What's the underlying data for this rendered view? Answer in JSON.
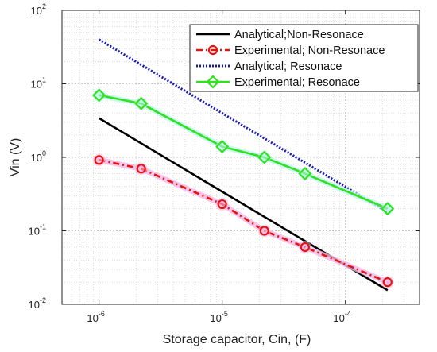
{
  "chart_data": {
    "type": "line",
    "xlabel": "Storage capacitor, Cin, (F)",
    "ylabel": "Vin (V)",
    "x_scale": "log",
    "y_scale": "log",
    "xlim": [
      5e-07,
      0.0004
    ],
    "ylim": [
      0.01,
      100
    ],
    "x_ticks": [
      {
        "value": 1e-06,
        "base": "10",
        "exp": "-6"
      },
      {
        "value": 1e-05,
        "base": "10",
        "exp": "-5"
      },
      {
        "value": 0.0001,
        "base": "10",
        "exp": "-4"
      }
    ],
    "y_ticks": [
      {
        "value": 0.01,
        "base": "10",
        "exp": "-2"
      },
      {
        "value": 0.1,
        "base": "10",
        "exp": "-1"
      },
      {
        "value": 1,
        "base": "10",
        "exp": "0"
      },
      {
        "value": 10,
        "base": "10",
        "exp": "1"
      },
      {
        "value": 100,
        "base": "10",
        "exp": "2"
      }
    ],
    "grid": true,
    "legend_position": "top-right",
    "series": [
      {
        "name": "Analytical;Non-Resonace",
        "color": "#000000",
        "style": "solid",
        "marker": "none",
        "x": [
          1e-06,
          0.00022
        ],
        "y": [
          3.4,
          0.0155
        ]
      },
      {
        "name": "Experimental; Non-Resonace",
        "color": "#e3150c",
        "style": "dashdot",
        "marker": "circle",
        "highlight": "#f2b8e8",
        "x": [
          1e-06,
          2.2e-06,
          1e-05,
          2.2e-05,
          4.7e-05,
          0.00022
        ],
        "y": [
          0.92,
          0.7,
          0.23,
          0.1,
          0.06,
          0.02
        ]
      },
      {
        "name": "Analytical; Resonace",
        "color": "#1a1ab8",
        "style": "dotted",
        "marker": "none",
        "x": [
          1e-06,
          0.00022
        ],
        "y": [
          40,
          0.18
        ]
      },
      {
        "name": "Experimental; Resonace",
        "color": "#33e01f",
        "style": "solid",
        "marker": "diamond",
        "highlight": "#bff5ef",
        "x": [
          1e-06,
          2.2e-06,
          1e-05,
          2.2e-05,
          4.7e-05,
          0.00022
        ],
        "y": [
          7,
          5.4,
          1.4,
          1.0,
          0.6,
          0.2
        ]
      }
    ]
  }
}
